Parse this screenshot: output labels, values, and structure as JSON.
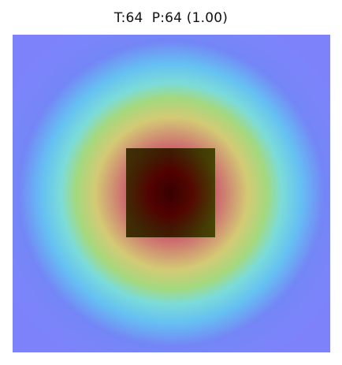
{
  "title": "T:64  P:64 (1.00)",
  "heatmap": {
    "type": "heatmap",
    "colormap": "jet",
    "overlay_alpha": 0.45,
    "background_color": "#8a8fcb",
    "object_color": "#2a0a00"
  }
}
